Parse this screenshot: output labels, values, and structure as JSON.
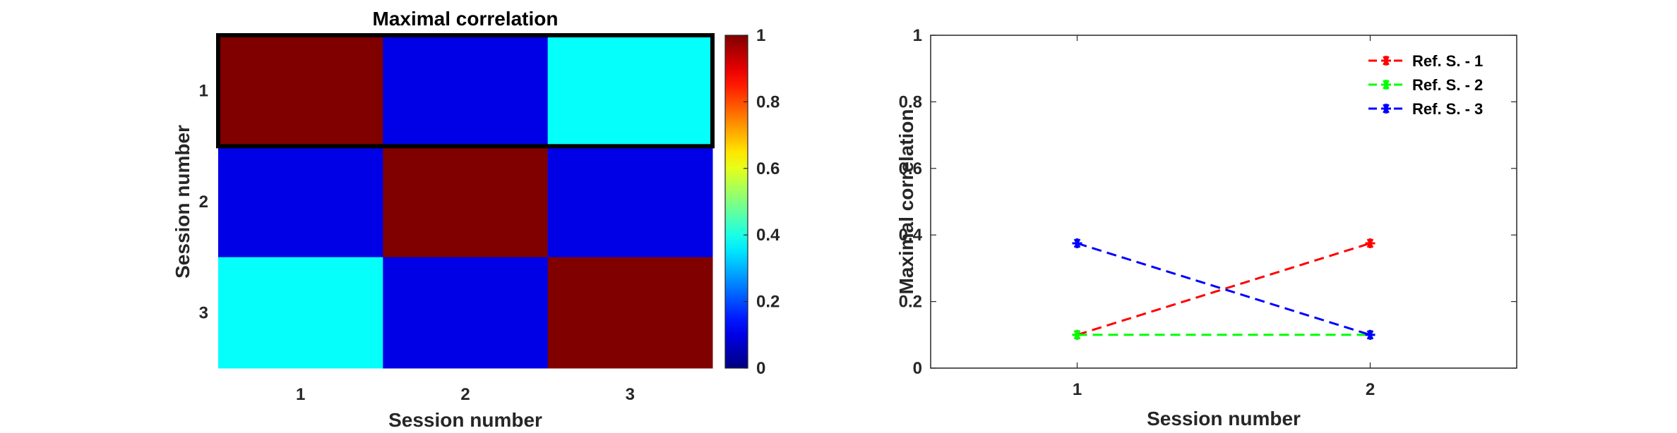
{
  "chart_data": [
    {
      "type": "heatmap",
      "title": "Maximal correlation",
      "xlabel": "Session number",
      "ylabel": "Session number",
      "x_categories": [
        "1",
        "2",
        "3"
      ],
      "y_categories": [
        "1",
        "2",
        "3"
      ],
      "values": [
        [
          1.0,
          0.1,
          0.38
        ],
        [
          0.1,
          1.0,
          0.1
        ],
        [
          0.38,
          0.1,
          1.0
        ]
      ],
      "highlighted_row": "1",
      "colorbar": {
        "colormap": "jet",
        "range": [
          0,
          1
        ],
        "ticks": [
          "0",
          "0.2",
          "0.4",
          "0.6",
          "0.8",
          "1"
        ]
      }
    },
    {
      "type": "line",
      "title": "",
      "xlabel": "Session number",
      "ylabel": "Maximal correlation",
      "x_ticks": [
        "1",
        "2"
      ],
      "y_ticks": [
        "0",
        "0.2",
        "0.4",
        "0.6",
        "0.8",
        "1"
      ],
      "xlim": [
        0.5,
        2.5
      ],
      "ylim": [
        0,
        1
      ],
      "legend_position": "top-right",
      "series": [
        {
          "name": "Ref. S. - 1",
          "color": "#ff0000",
          "x": [
            1,
            2
          ],
          "y": [
            0.1,
            0.375
          ]
        },
        {
          "name": "Ref. S. - 2",
          "color": "#00ff00",
          "x": [
            1,
            2
          ],
          "y": [
            0.1,
            0.1
          ]
        },
        {
          "name": "Ref. S. - 3",
          "color": "#0000ff",
          "x": [
            1,
            2
          ],
          "y": [
            0.375,
            0.1
          ]
        }
      ],
      "line_style": "dashed",
      "marker": "asterisk"
    }
  ]
}
